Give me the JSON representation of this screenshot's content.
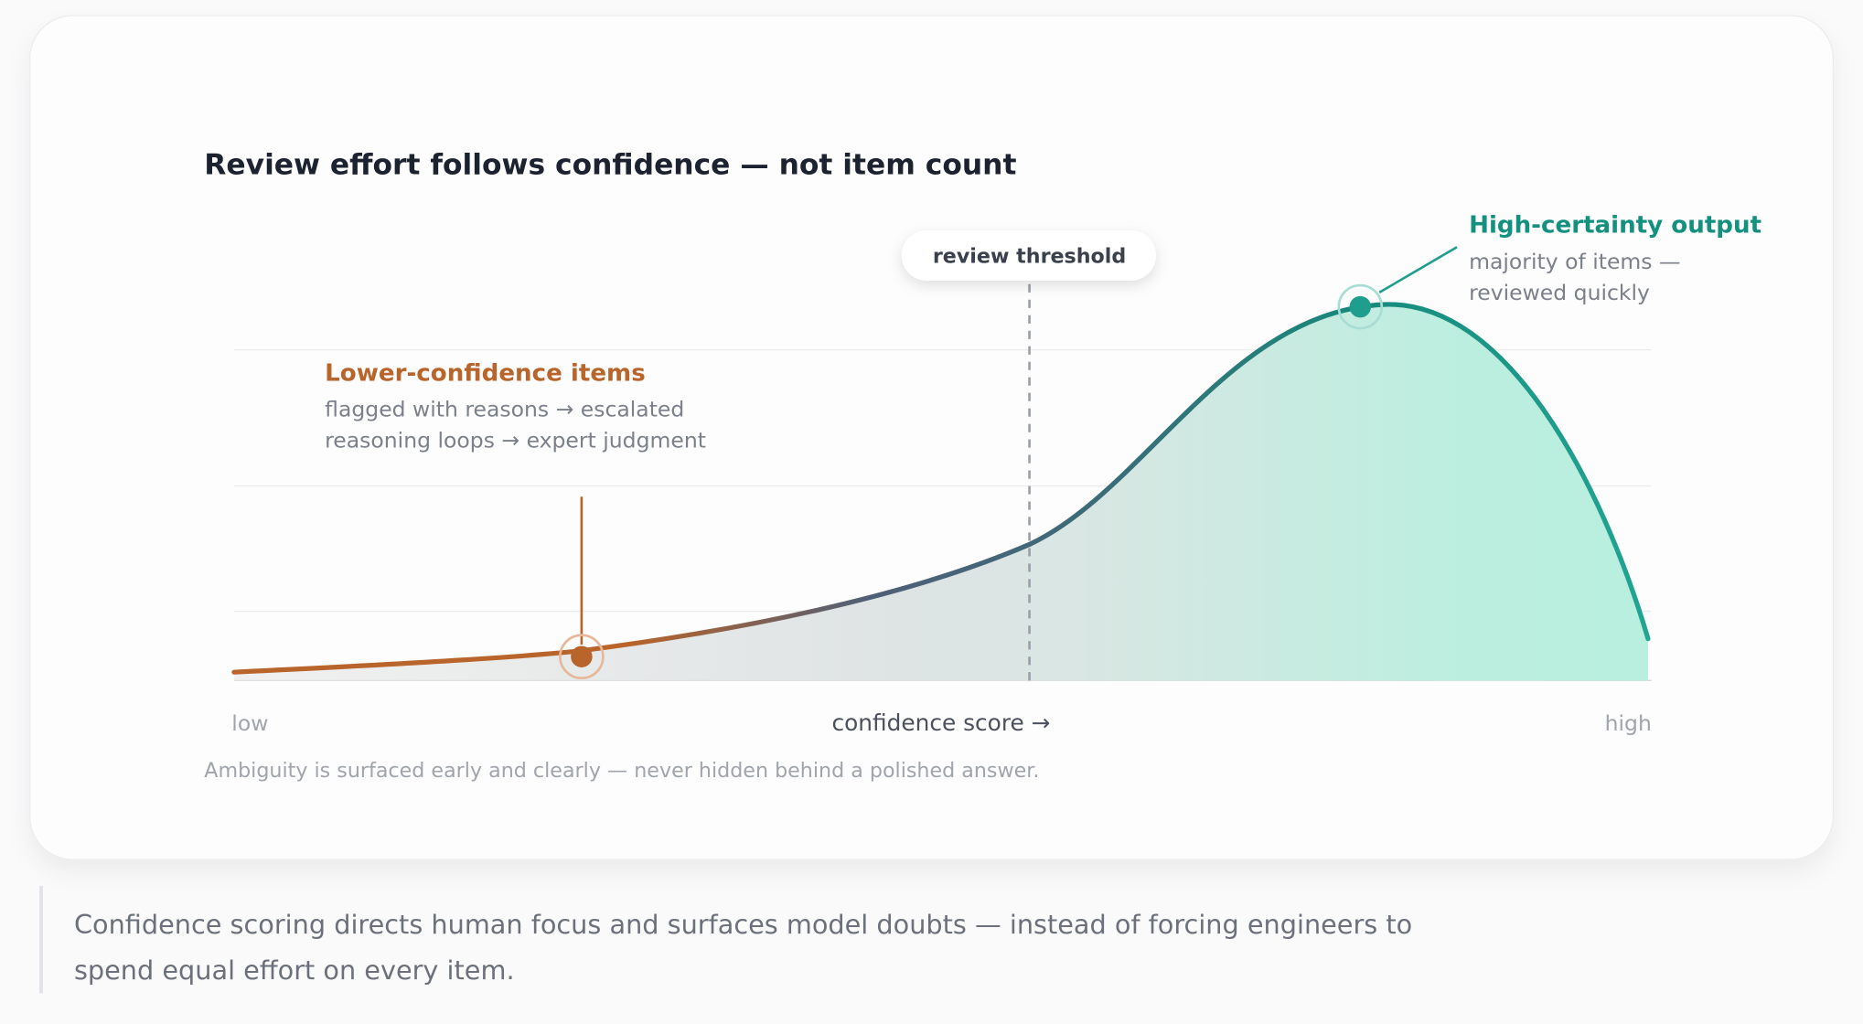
{
  "card": {
    "title": "Review effort follows confidence — not item count",
    "threshold_label": "review threshold",
    "high": {
      "title": "High-certainty output",
      "lines": [
        "majority of items —",
        "reviewed quickly"
      ]
    },
    "low": {
      "title": "Lower-confidence items",
      "lines": [
        "flagged with reasons → escalated",
        "reasoning loops → expert judgment"
      ]
    },
    "axis": {
      "low": "low",
      "label": "confidence score →",
      "high": "high"
    },
    "footnote": "Ambiguity is surfaced early and clearly — never hidden behind a polished answer."
  },
  "caption": [
    "Confidence scoring directs human focus and surfaces model doubts — instead of forcing engineers to",
    "spend equal effort on every item."
  ]
}
